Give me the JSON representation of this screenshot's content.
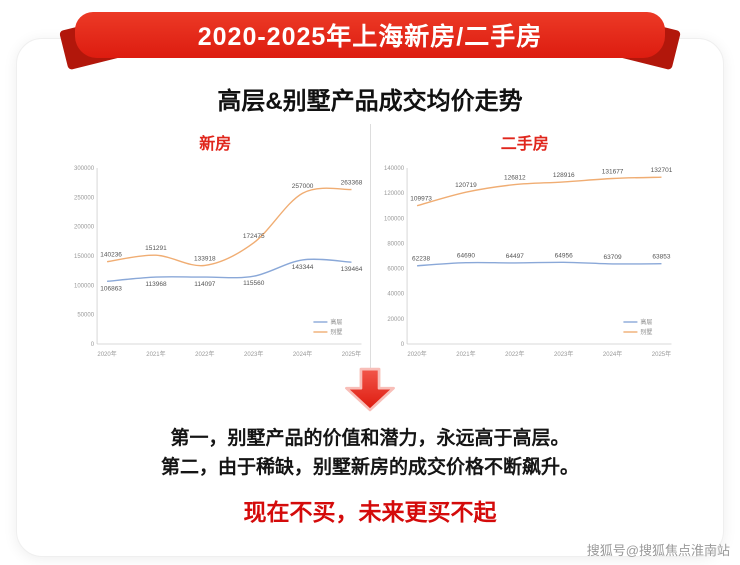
{
  "banner": {
    "title": "2020-2025年上海新房/二手房"
  },
  "page_title": "高层&别墅产品成交均价走势",
  "colors": {
    "banner_red": "#e2261a",
    "accent_red": "#e0261c",
    "highlight_red": "#d40b0b",
    "line_blue": "#8aa8d8",
    "line_orange": "#f0ad73"
  },
  "chart_data": [
    {
      "type": "line",
      "title": "新房",
      "categories": [
        "2020年",
        "2021年",
        "2022年",
        "2023年",
        "2024年",
        "2025年"
      ],
      "series": [
        {
          "name": "高层",
          "color": "#8aa8d8",
          "label_side": "below",
          "values": [
            106863,
            113968,
            114097,
            115560,
            143344,
            139464
          ]
        },
        {
          "name": "别墅",
          "color": "#f0ad73",
          "label_side": "above",
          "values": [
            140236,
            151291,
            133918,
            172475,
            257000,
            263368
          ]
        }
      ],
      "ylim": [
        0,
        300000
      ],
      "ytick_step": 50000,
      "grid": false,
      "legend_position": "bottom-right"
    },
    {
      "type": "line",
      "title": "二手房",
      "categories": [
        "2020年",
        "2021年",
        "2022年",
        "2023年",
        "2024年",
        "2025年"
      ],
      "series": [
        {
          "name": "高层",
          "color": "#8aa8d8",
          "label_side": "above",
          "values": [
            62238,
            64690,
            64497,
            64956,
            63709,
            63853
          ]
        },
        {
          "name": "别墅",
          "color": "#f0ad73",
          "label_side": "above",
          "values": [
            109973,
            120719,
            126812,
            128916,
            131677,
            132701
          ]
        }
      ],
      "ylim": [
        0,
        140000
      ],
      "ytick_step": 20000,
      "grid": false,
      "legend_position": "bottom-right"
    }
  ],
  "conclusion": {
    "line1": "第一，别墅产品的价值和潜力，永远高于高层。",
    "line2": "第二，由于稀缺，别墅新房的成交价格不断飙升。",
    "highlight": "现在不买，未来更买不起"
  },
  "watermark": "搜狐号@搜狐焦点淮南站"
}
